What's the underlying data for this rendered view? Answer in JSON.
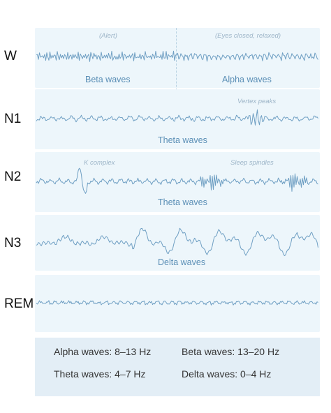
{
  "stages": [
    {
      "label": "W",
      "notes": [
        "(Alert)",
        "(Eyes closed, relaxed)"
      ],
      "waves": [
        "Beta waves",
        "Alpha waves"
      ]
    },
    {
      "label": "N1",
      "notes": [
        "Vertex peaks"
      ],
      "waves": [
        "Theta waves"
      ]
    },
    {
      "label": "N2",
      "notes": [
        "K complex",
        "Sleep spindles"
      ],
      "waves": [
        "Theta waves"
      ]
    },
    {
      "label": "N3",
      "notes": [],
      "waves": [
        "Delta waves"
      ]
    },
    {
      "label": "REM",
      "notes": [],
      "waves": []
    }
  ],
  "legend": {
    "alpha": "Alpha waves: 8–13 Hz",
    "beta": "Beta waves: 13–20 Hz",
    "theta": "Theta waves: 4–7 Hz",
    "delta": "Delta waves: 0–4 Hz"
  },
  "colors": {
    "trace": "#6f9fc3",
    "panel": "#edf6fb",
    "legend_bg": "#e3eef6",
    "label": "#5b8fb6"
  }
}
